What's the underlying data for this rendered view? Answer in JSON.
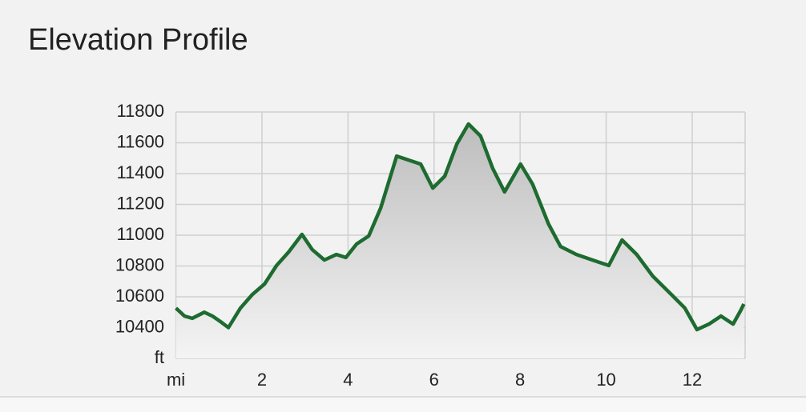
{
  "chart_data": {
    "type": "area",
    "title": "Elevation Profile",
    "x": [
      0,
      0.2,
      0.38,
      0.66,
      0.85,
      1.03,
      1.22,
      1.5,
      1.78,
      2.06,
      2.34,
      2.62,
      2.93,
      3.17,
      3.45,
      3.73,
      3.95,
      4.2,
      4.48,
      4.76,
      5.13,
      5.41,
      5.69,
      5.97,
      6.25,
      6.53,
      6.8,
      7.08,
      7.36,
      7.64,
      8.01,
      8.29,
      8.66,
      8.94,
      9.31,
      9.68,
      10.06,
      10.37,
      10.71,
      11.08,
      11.55,
      11.83,
      12.11,
      12.39,
      12.67,
      12.95,
      13.13,
      13.2
    ],
    "values": [
      10527,
      10475,
      10460,
      10500,
      10475,
      10440,
      10400,
      10527,
      10616,
      10683,
      10803,
      10891,
      11005,
      10906,
      10839,
      10875,
      10855,
      10943,
      10995,
      11177,
      11514,
      11488,
      11462,
      11306,
      11384,
      11592,
      11722,
      11644,
      11436,
      11281,
      11462,
      11332,
      11073,
      10927,
      10875,
      10839,
      10803,
      10969,
      10875,
      10735,
      10605,
      10527,
      10387,
      10423,
      10475,
      10423,
      10512,
      10553
    ],
    "color": "#1e6b30",
    "xlim": [
      0,
      13.23
    ],
    "xticks": [
      {
        "value": 0,
        "label": "mi"
      },
      2,
      4,
      6,
      8,
      10,
      12
    ],
    "ylim": [
      10200,
      11800
    ],
    "yticks": [
      {
        "value": 10200,
        "label": "ft"
      },
      10400,
      10600,
      10800,
      11000,
      11200,
      11400,
      11600,
      11800
    ],
    "grid": true
  }
}
